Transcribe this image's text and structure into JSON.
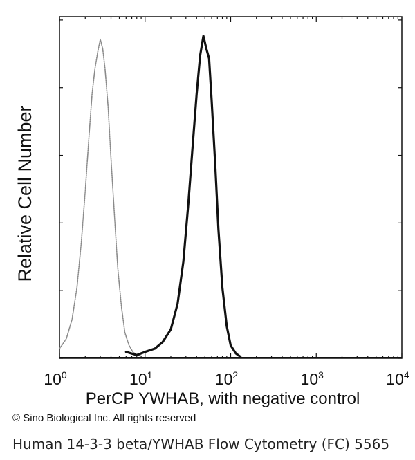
{
  "chart_data": {
    "type": "line",
    "title": "",
    "xlabel": "PerCP YWHAB, with negative control",
    "ylabel": "Relative Cell Number",
    "x_scale": "log",
    "xlim": [
      1,
      10000
    ],
    "ylim": [
      0,
      1
    ],
    "x_ticks": [
      {
        "base": "10",
        "exp": "0"
      },
      {
        "base": "10",
        "exp": "1"
      },
      {
        "base": "10",
        "exp": "2"
      },
      {
        "base": "10",
        "exp": "3"
      },
      {
        "base": "10",
        "exp": "4"
      }
    ],
    "grid": false,
    "legend": "none",
    "series": [
      {
        "style": "dotted-gray",
        "color": "#8a8a8a",
        "x": [
          1.0,
          1.2,
          1.4,
          1.6,
          1.8,
          2.0,
          2.2,
          2.4,
          2.6,
          2.8,
          3.0,
          3.2,
          3.4,
          3.7,
          4.0,
          4.4,
          4.8,
          5.3,
          5.8,
          6.5,
          7.2,
          8.0,
          9.0
        ],
        "y": [
          0.03,
          0.06,
          0.12,
          0.22,
          0.36,
          0.52,
          0.68,
          0.82,
          0.9,
          0.95,
          0.99,
          0.96,
          0.9,
          0.78,
          0.62,
          0.44,
          0.28,
          0.16,
          0.08,
          0.04,
          0.02,
          0.01,
          0.01
        ]
      },
      {
        "style": "solid-black",
        "color": "#111111",
        "x": [
          6.0,
          8.0,
          10.0,
          13.0,
          16.0,
          20.0,
          24.0,
          28.0,
          32.0,
          36.0,
          40.0,
          44.0,
          48.0,
          52.0,
          56.0,
          60.0,
          66.0,
          72.0,
          80.0,
          90.0,
          100.0,
          115.0,
          130.0
        ],
        "y": [
          0.02,
          0.01,
          0.02,
          0.03,
          0.05,
          0.09,
          0.17,
          0.3,
          0.48,
          0.66,
          0.82,
          0.94,
          1.0,
          0.96,
          0.93,
          0.8,
          0.6,
          0.4,
          0.22,
          0.1,
          0.04,
          0.015,
          0.005
        ]
      }
    ]
  },
  "copyright": "© Sino Biological Inc. All rights reserved",
  "caption": "Human 14-3-3 beta/YWHAB Flow Cytometry (FC) 5565"
}
